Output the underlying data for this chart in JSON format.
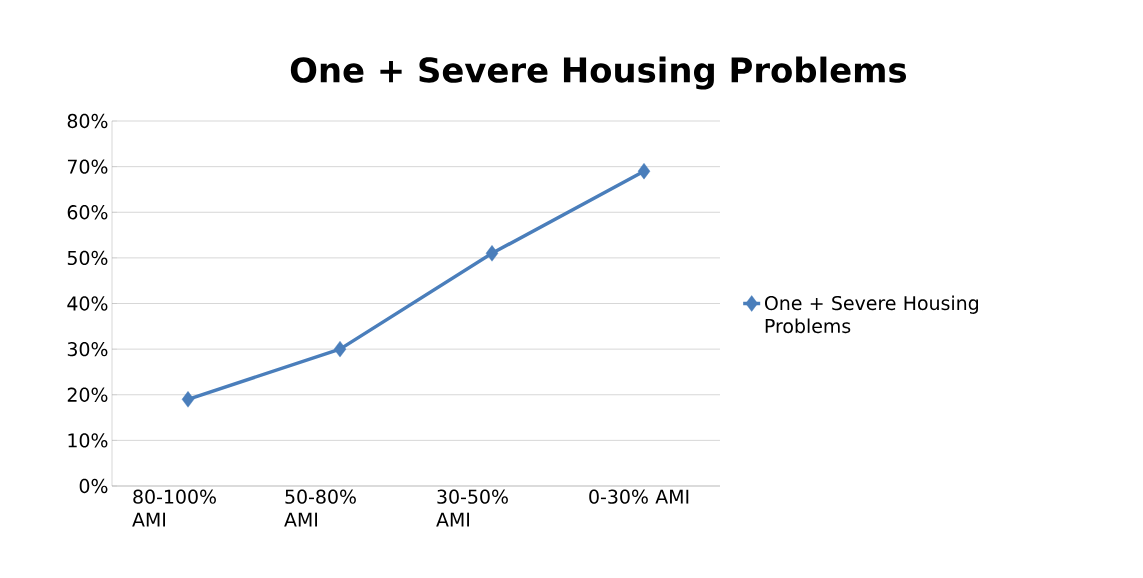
{
  "chart_data": {
    "type": "line",
    "title": "One + Severe Housing Problems",
    "categories": [
      "80-100% AMI",
      "50-80% AMI",
      "30-50% AMI",
      "0-30% AMI"
    ],
    "series": [
      {
        "name": "One + Severe Housing Problems",
        "color": "#4a7ebb",
        "values": [
          19,
          30,
          51,
          69
        ]
      }
    ],
    "ylim": [
      0,
      80
    ],
    "yticks": [
      {
        "value": 0,
        "label": "0%"
      },
      {
        "value": 10,
        "label": "10%"
      },
      {
        "value": 20,
        "label": "20%"
      },
      {
        "value": 30,
        "label": "30%"
      },
      {
        "value": 40,
        "label": "40%"
      },
      {
        "value": 50,
        "label": "50%"
      },
      {
        "value": 60,
        "label": "60%"
      },
      {
        "value": 70,
        "label": "70%"
      },
      {
        "value": 80,
        "label": "80%"
      }
    ],
    "grid": "y",
    "legend": "right",
    "marker": "diamond",
    "line_style": "solid"
  }
}
